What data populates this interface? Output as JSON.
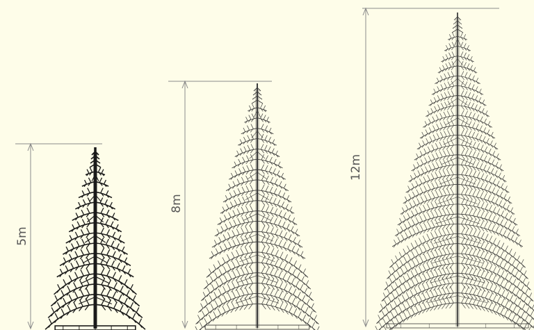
{
  "colors": {
    "background": "#fefde9",
    "dimension_line": "#8a8a8a",
    "label": "#555555",
    "tree_small": "#1a1a1a",
    "tree_medium": "#3a3a3a",
    "tree_large": "#3a3a3a"
  },
  "trees": [
    {
      "height_label": "5m",
      "height_m": 5
    },
    {
      "height_label": "8m",
      "height_m": 8
    },
    {
      "height_label": "12m",
      "height_m": 12
    }
  ]
}
